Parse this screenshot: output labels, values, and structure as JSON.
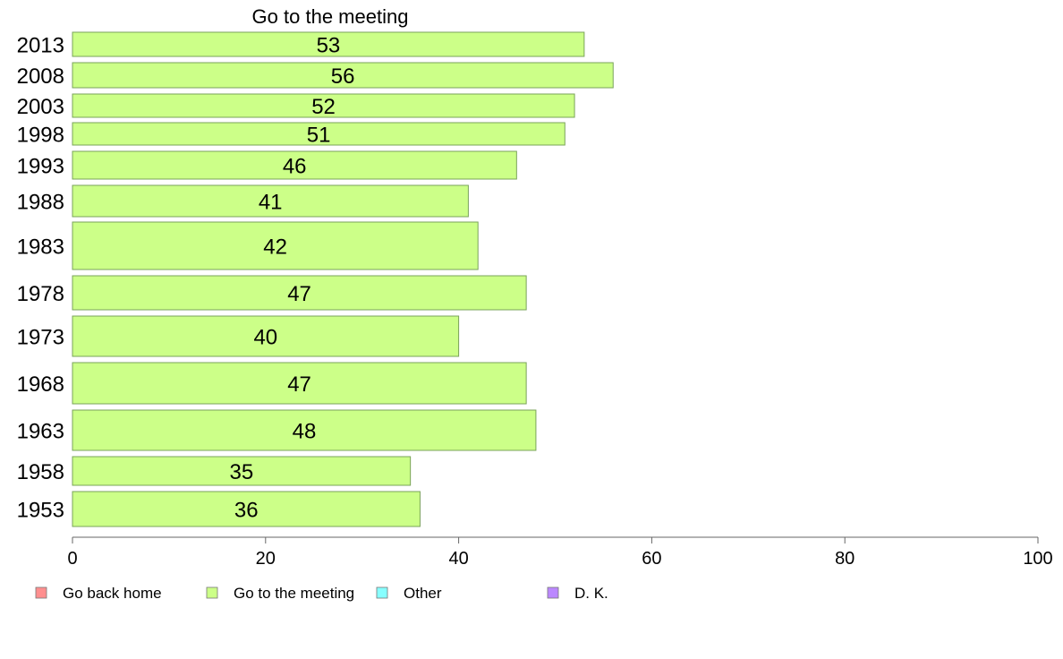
{
  "chart_data": {
    "type": "bar",
    "orientation": "horizontal",
    "title": "Go to the meeting",
    "categories": [
      "2013",
      "2008",
      "2003",
      "1998",
      "1993",
      "1988",
      "1983",
      "1978",
      "1973",
      "1968",
      "1963",
      "1958",
      "1953"
    ],
    "series": [
      {
        "name": "Go to the meeting",
        "values": [
          53,
          56,
          52,
          51,
          46,
          41,
          42,
          47,
          40,
          47,
          48,
          35,
          36
        ]
      }
    ],
    "xlim": [
      0,
      100
    ],
    "xticks": [
      0,
      20,
      40,
      60,
      80,
      100
    ],
    "grid": false,
    "legend": {
      "placement": "bottom-left",
      "items": [
        {
          "label": "Go back home",
          "color": "#ff8f8f"
        },
        {
          "label": "Go to the meeting",
          "color": "#ccff88"
        },
        {
          "label": "Other",
          "color": "#88ffff"
        },
        {
          "label": "D. K.",
          "color": "#bb88ff"
        }
      ]
    },
    "bar_color": "#ccff88",
    "bar_stroke": "#7aa35a"
  }
}
